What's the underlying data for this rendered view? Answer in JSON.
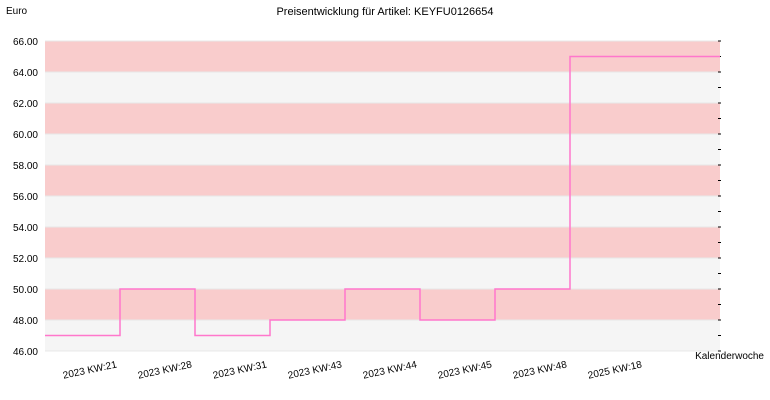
{
  "chart_data": {
    "type": "line",
    "step": true,
    "title": "Preisentwicklung für Artikel: KEYFU0126654",
    "ylabel": "Euro",
    "xlabel": "Kalenderwoche",
    "categories": [
      "2023 KW:21",
      "2023 KW:28",
      "2023 KW:31",
      "2023 KW:43",
      "2023 KW:44",
      "2023 KW:45",
      "2023 KW:48",
      "2025 KW:18"
    ],
    "y_ticks": [
      "46.00",
      "48.00",
      "50.00",
      "52.00",
      "54.00",
      "56.00",
      "58.00",
      "60.00",
      "62.00",
      "64.00",
      "66.00"
    ],
    "ylim": [
      46,
      66
    ],
    "series": [
      {
        "values": [
          47,
          50,
          47,
          48,
          50,
          48,
          50,
          65
        ]
      }
    ],
    "colors": {
      "line": "#ff77cc",
      "band_dark": "#f9cccc",
      "band_light": "#f5f5f5",
      "grid": "#ffffff"
    }
  }
}
